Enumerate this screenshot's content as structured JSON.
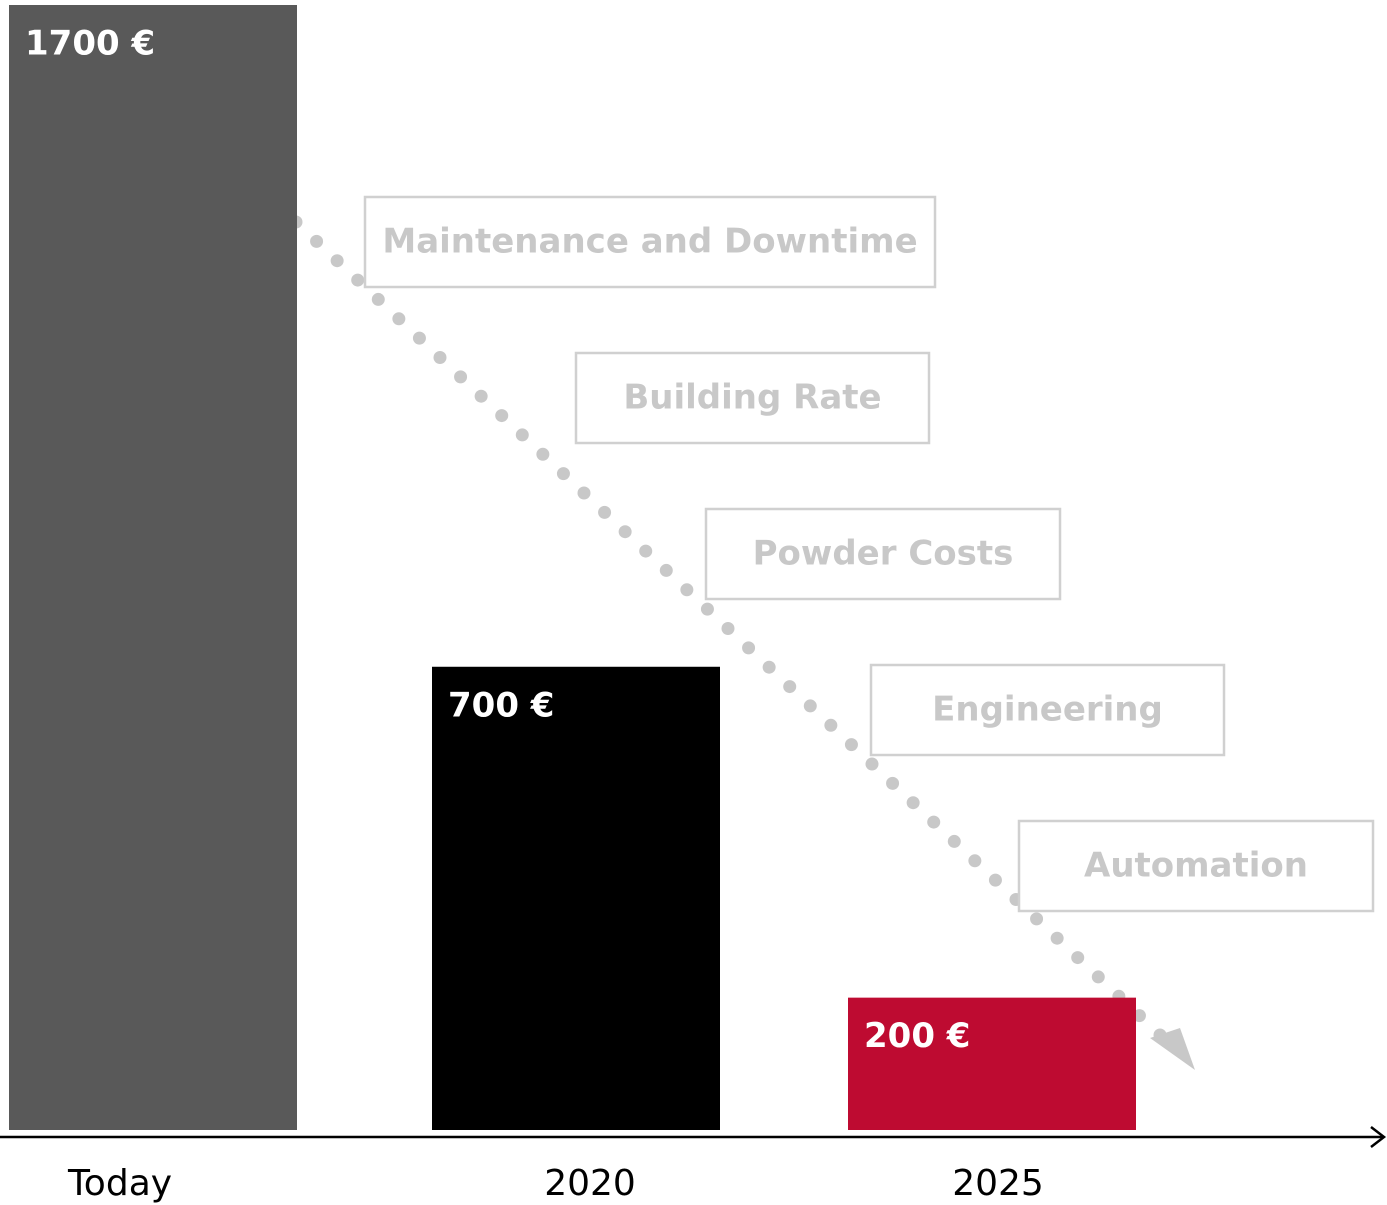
{
  "chart_data": {
    "type": "bar",
    "categories": [
      "Today",
      "2020",
      "2025"
    ],
    "values": [
      1700,
      700,
      200
    ],
    "value_labels": [
      "1700 €",
      "700 €",
      "200 €"
    ],
    "colors": [
      "#595959",
      "#000000",
      "#be0b31"
    ],
    "annotations": [
      "Maintenance and Downtime",
      "Building Rate",
      "Powder Costs",
      "Engineering",
      "Automation"
    ]
  }
}
